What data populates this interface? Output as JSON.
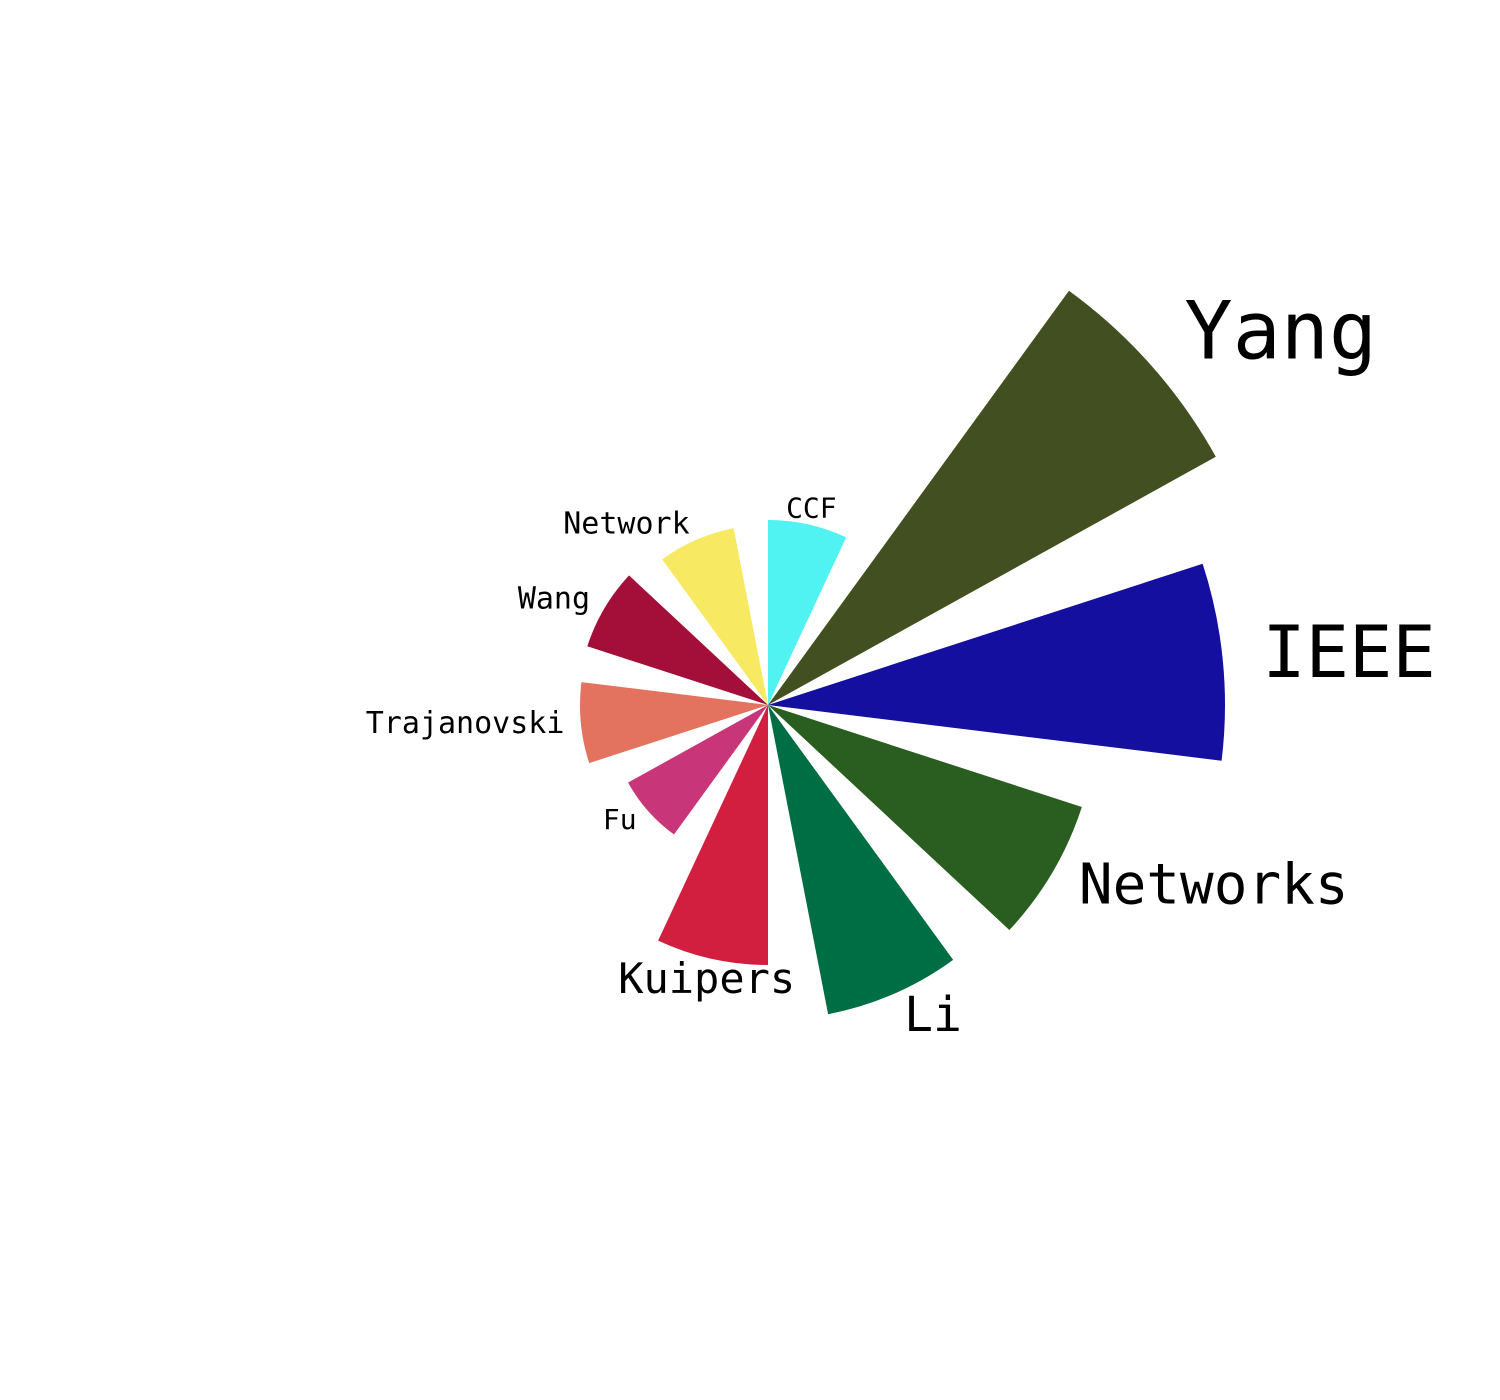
{
  "chart_data": {
    "type": "polar-bar",
    "angular_direction": "clockwise",
    "start_angle": "top",
    "categories": [
      "CCF",
      "Yang",
      "IEEE",
      "Networks",
      "Li",
      "Kuipers",
      "Fu",
      "Trajanovski",
      "Wang",
      "Network"
    ],
    "values": [
      185,
      512,
      457,
      330,
      315,
      260,
      160,
      188,
      190,
      180
    ],
    "colors": [
      "#50F2F2",
      "#414F21",
      "#140F9F",
      "#2A5D20",
      "#006E44",
      "#D21F40",
      "#C83578",
      "#E3725E",
      "#A30F38",
      "#F7E962"
    ],
    "label_sizes": [
      28,
      80,
      72,
      56,
      48,
      42,
      28,
      30,
      30,
      30
    ]
  }
}
